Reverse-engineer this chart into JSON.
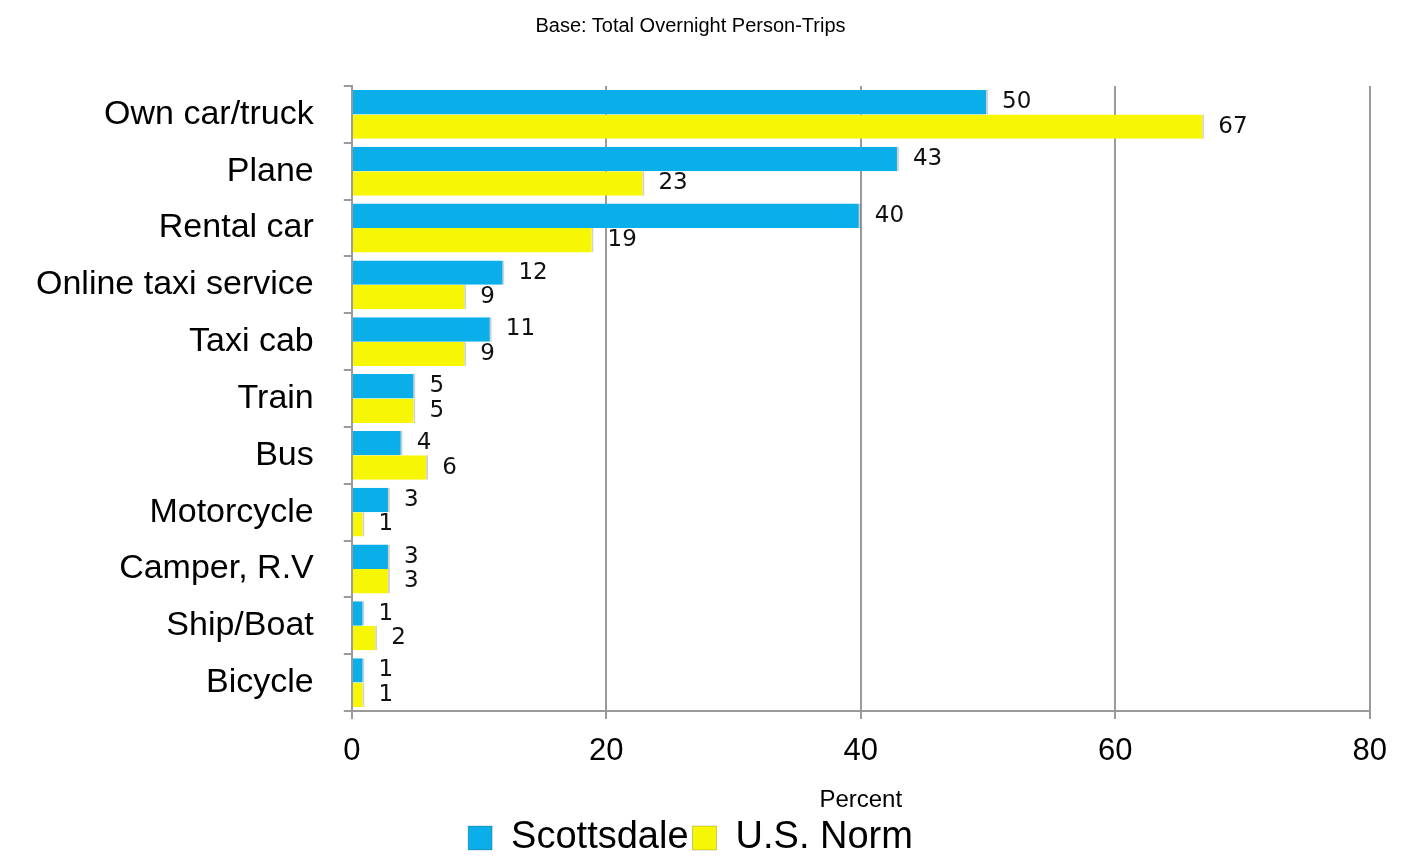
{
  "chart_data": {
    "type": "bar",
    "orientation": "horizontal",
    "title": "Base: Total Overnight Person-Trips",
    "xlabel": "Percent",
    "categories": [
      "Own car/truck",
      "Plane",
      "Rental car",
      "Online taxi service",
      "Taxi cab",
      "Train",
      "Bus",
      "Motorcycle",
      "Camper, R.V",
      "Ship/Boat",
      "Bicycle"
    ],
    "series": [
      {
        "name": "Scottsdale",
        "color": "#0aaee8",
        "values": [
          50,
          43,
          40,
          12,
          11,
          5,
          4,
          3,
          3,
          1,
          1
        ]
      },
      {
        "name": "U.S. Norm",
        "color": "#f7f705",
        "values": [
          67,
          23,
          19,
          9,
          9,
          5,
          6,
          1,
          3,
          2,
          1
        ]
      }
    ],
    "xlim": [
      0,
      80
    ],
    "xticks": [
      0,
      20,
      40,
      60,
      80
    ],
    "grid": "x",
    "legend": "bottom",
    "data_labels": true
  }
}
